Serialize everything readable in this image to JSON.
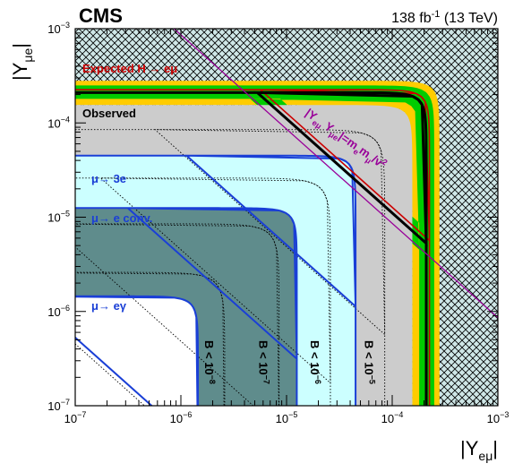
{
  "chart_data": {
    "type": "area",
    "experiment": "CMS",
    "lumi_label": "138 fb",
    "lumi_sup": "-1",
    "lumi_energy": " (13 TeV)",
    "xlabel": "|Y",
    "xlabel_sub": "eμ",
    "xlabel_end": "|",
    "ylabel": "|Y",
    "ylabel_sub": "μe",
    "ylabel_end": "|",
    "xscale": "log",
    "yscale": "log",
    "xlim": [
      1e-07,
      0.001
    ],
    "ylim": [
      1e-07,
      0.001
    ],
    "xticks": [
      {
        "base": "10",
        "exp": "−7",
        "value": 1e-07
      },
      {
        "base": "10",
        "exp": "−6",
        "value": 1e-06
      },
      {
        "base": "10",
        "exp": "−5",
        "value": 1e-05
      },
      {
        "base": "10",
        "exp": "−4",
        "value": 0.0001
      },
      {
        "base": "10",
        "exp": "−3",
        "value": 0.001
      }
    ],
    "yticks": [
      {
        "base": "10",
        "exp": "−7",
        "value": 1e-07
      },
      {
        "base": "10",
        "exp": "−6",
        "value": 1e-06
      },
      {
        "base": "10",
        "exp": "−5",
        "value": 1e-05
      },
      {
        "base": "10",
        "exp": "−4",
        "value": 0.0001
      },
      {
        "base": "10",
        "exp": "−3",
        "value": 0.001
      }
    ],
    "excluded_region": {
      "hatched": true,
      "boundary": 0.00027
    },
    "expected": {
      "label": "Expected H → eμ",
      "color": "#cc0000",
      "value": 0.000225,
      "band_2sigma": [
        0.000155,
        0.00028
      ],
      "band_1sigma": [
        0.00018,
        0.00025
      ],
      "band_2sigma_color": "#ffcc00",
      "band_1sigma_color": "#00cc00"
    },
    "observed": {
      "label": "Observed",
      "color": "#000000",
      "value": 0.00021
    },
    "constraints": [
      {
        "label": "μ→ 3e",
        "value": 4.5e-05,
        "fill": "#ccffff",
        "line": "#1a3fd6"
      },
      {
        "label": "μ→ e conv.",
        "value": 1.25e-05,
        "fill": "#5f8c8c",
        "line": "#1a3fd6"
      },
      {
        "label": "μ→ eγ",
        "value": 1.45e-06,
        "fill": "#ffffff",
        "line": "#1a3fd6"
      }
    ],
    "naturalness": {
      "label": "|Y_eμ Y_μe|=m_e m_μ/v²",
      "label_pre": "|Y",
      "label_s1": "e",
      "label_s2": "μ",
      "label_mid": " Y",
      "label_s3": "μ",
      "label_s4": "e",
      "label_post": "|=m",
      "label_s5": "e",
      "label_mid2": "m",
      "label_s6": "μ",
      "label_post2": "/v",
      "label_sup": "2",
      "product": 8.6e-10,
      "color": "#990099"
    },
    "br_contours": [
      {
        "label_base": "B < 10",
        "label_exp": "−8",
        "value": 2.6e-06
      },
      {
        "label_base": "B < 10",
        "label_exp": "−7",
        "value": 8.5e-06
      },
      {
        "label_base": "B < 10",
        "label_exp": "−6",
        "value": 2.6e-05
      },
      {
        "label_base": "B < 10",
        "label_exp": "−5",
        "value": 8.5e-05
      }
    ],
    "colors": {
      "observed_fill": "#cccccc",
      "contour_line": "#000000"
    }
  }
}
